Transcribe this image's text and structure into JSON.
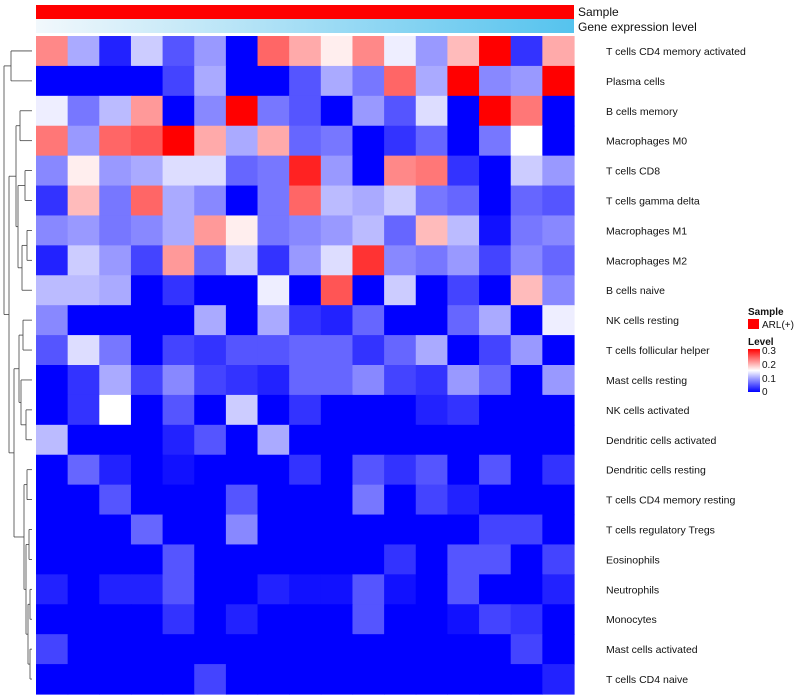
{
  "chart_data": {
    "type": "heatmap",
    "title": "",
    "annotation_rows": [
      {
        "label": "Sample",
        "color": "#ff0000"
      },
      {
        "label": "Gene expression level",
        "gradient": [
          "#f2f8fc",
          "#55c3ee"
        ]
      }
    ],
    "rows": [
      "T cells CD4 memory activated",
      "Plasma cells",
      "B cells memory",
      "Macrophages M0",
      "T cells CD8",
      "T cells gamma delta",
      "Macrophages M1",
      "Macrophages M2",
      "B cells naive",
      "NK cells resting",
      "T cells follicular helper",
      "Mast cells resting",
      "NK cells activated",
      "Dendritic cells activated",
      "Dendritic cells resting",
      "T cells CD4 memory resting",
      "T cells regulatory  Tregs",
      "Eosinophils",
      "Neutrophils",
      "Monocytes",
      "Mast cells activated",
      "T cells CD4 naive"
    ],
    "n_columns": 17,
    "values": [
      [
        0.22,
        0.1,
        0.02,
        0.12,
        0.05,
        0.09,
        0.0,
        0.24,
        0.2,
        0.16,
        0.22,
        0.14,
        0.09,
        0.19,
        0.3,
        0.03,
        0.2
      ],
      [
        0.0,
        0.0,
        0.0,
        0.0,
        0.04,
        0.1,
        0.0,
        0.0,
        0.05,
        0.1,
        0.07,
        0.24,
        0.1,
        0.3,
        0.08,
        0.09,
        0.3
      ],
      [
        0.14,
        0.07,
        0.11,
        0.21,
        0.0,
        0.08,
        0.3,
        0.07,
        0.05,
        0.0,
        0.09,
        0.05,
        0.13,
        0.0,
        0.3,
        0.23,
        0.0
      ],
      [
        0.23,
        0.09,
        0.24,
        0.25,
        0.3,
        0.2,
        0.1,
        0.2,
        0.06,
        0.07,
        0.0,
        0.03,
        0.06,
        0.0,
        0.07,
        0.15,
        0.0
      ],
      [
        0.08,
        0.16,
        0.09,
        0.1,
        0.13,
        0.13,
        0.06,
        0.07,
        0.28,
        0.09,
        0.0,
        0.22,
        0.23,
        0.03,
        0.0,
        0.12,
        0.09
      ],
      [
        0.03,
        0.19,
        0.07,
        0.24,
        0.1,
        0.08,
        0.0,
        0.07,
        0.24,
        0.11,
        0.1,
        0.12,
        0.07,
        0.06,
        0.0,
        0.06,
        0.05
      ],
      [
        0.08,
        0.09,
        0.07,
        0.08,
        0.1,
        0.21,
        0.16,
        0.07,
        0.08,
        0.09,
        0.11,
        0.06,
        0.19,
        0.11,
        0.01,
        0.07,
        0.08
      ],
      [
        0.02,
        0.12,
        0.09,
        0.04,
        0.21,
        0.06,
        0.12,
        0.03,
        0.09,
        0.13,
        0.27,
        0.08,
        0.07,
        0.09,
        0.04,
        0.08,
        0.06
      ],
      [
        0.11,
        0.11,
        0.1,
        0.0,
        0.03,
        0.0,
        0.0,
        0.14,
        0.0,
        0.25,
        0.0,
        0.12,
        0.0,
        0.04,
        0.0,
        0.19,
        0.08
      ],
      [
        0.08,
        0.0,
        0.0,
        0.0,
        0.0,
        0.1,
        0.0,
        0.1,
        0.03,
        0.02,
        0.06,
        0.0,
        0.0,
        0.06,
        0.1,
        0.0,
        0.14
      ],
      [
        0.05,
        0.13,
        0.07,
        0.0,
        0.04,
        0.03,
        0.05,
        0.05,
        0.06,
        0.06,
        0.03,
        0.06,
        0.1,
        0.0,
        0.04,
        0.09,
        0.0
      ],
      [
        0.0,
        0.03,
        0.1,
        0.04,
        0.08,
        0.04,
        0.03,
        0.02,
        0.06,
        0.06,
        0.08,
        0.04,
        0.03,
        0.09,
        0.06,
        0.0,
        0.09
      ],
      [
        0.0,
        0.03,
        0.15,
        0.0,
        0.05,
        0.0,
        0.12,
        0.0,
        0.03,
        0.0,
        0.0,
        0.0,
        0.02,
        0.03,
        0.0,
        0.0,
        0.0
      ],
      [
        0.11,
        0.0,
        0.0,
        0.0,
        0.02,
        0.05,
        0.0,
        0.1,
        0.0,
        0.0,
        0.0,
        0.0,
        0.0,
        0.0,
        0.0,
        0.0,
        0.0
      ],
      [
        0.0,
        0.06,
        0.02,
        0.0,
        0.01,
        0.0,
        0.0,
        0.0,
        0.03,
        0.0,
        0.05,
        0.03,
        0.05,
        0.0,
        0.05,
        0.0,
        0.03
      ],
      [
        0.0,
        0.0,
        0.05,
        0.0,
        0.0,
        0.0,
        0.05,
        0.0,
        0.0,
        0.0,
        0.07,
        0.0,
        0.04,
        0.02,
        0.0,
        0.0,
        0.0
      ],
      [
        0.0,
        0.0,
        0.0,
        0.06,
        0.0,
        0.0,
        0.08,
        0.0,
        0.0,
        0.0,
        0.0,
        0.0,
        0.0,
        0.0,
        0.04,
        0.04,
        0.0
      ],
      [
        0.0,
        0.0,
        0.0,
        0.0,
        0.05,
        0.0,
        0.0,
        0.0,
        0.0,
        0.0,
        0.0,
        0.03,
        0.0,
        0.05,
        0.05,
        0.0,
        0.04
      ],
      [
        0.02,
        0.0,
        0.02,
        0.02,
        0.05,
        0.0,
        0.0,
        0.02,
        0.01,
        0.01,
        0.05,
        0.01,
        0.0,
        0.05,
        0.0,
        0.0,
        0.02
      ],
      [
        0.0,
        0.0,
        0.0,
        0.0,
        0.03,
        0.0,
        0.02,
        0.0,
        0.0,
        0.0,
        0.05,
        0.0,
        0.0,
        0.01,
        0.04,
        0.03,
        0.0
      ],
      [
        0.04,
        0.0,
        0.0,
        0.0,
        0.0,
        0.0,
        0.0,
        0.0,
        0.0,
        0.0,
        0.0,
        0.0,
        0.0,
        0.0,
        0.0,
        0.04,
        0.0
      ],
      [
        0.0,
        0.0,
        0.0,
        0.0,
        0.0,
        0.04,
        0.0,
        0.0,
        0.0,
        0.0,
        0.0,
        0.0,
        0.0,
        0.0,
        0.0,
        0.0,
        0.02
      ]
    ],
    "color_scale": {
      "low": "#0000ff",
      "mid": "#ffffff",
      "high": "#ff0000",
      "min": 0,
      "mid_value": 0.15,
      "max": 0.3
    },
    "legend": {
      "sample_title": "Sample",
      "sample_entry": "ARL(+)",
      "sample_color": "#ff0000",
      "level_title": "Level",
      "level_ticks": [
        "0.3",
        "0.2",
        "0.1",
        "0"
      ]
    },
    "row_dendrogram": true
  }
}
